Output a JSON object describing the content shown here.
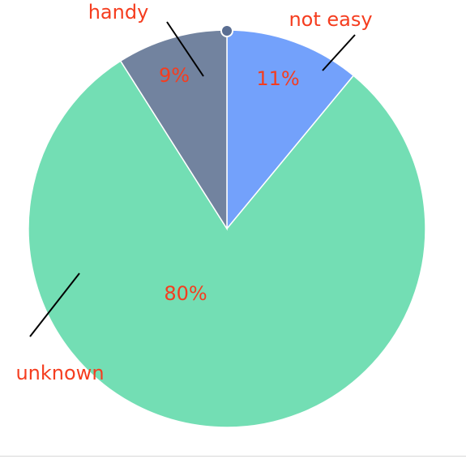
{
  "chart_data": {
    "type": "pie",
    "start_angle_deg": 0,
    "direction": "clockwise",
    "slices": [
      {
        "label": "not easy",
        "value": 11,
        "percent_label": "11%",
        "color": "#73a1fb"
      },
      {
        "label": "unknown",
        "value": 80,
        "percent_label": "80%",
        "color": "#73deb4"
      },
      {
        "label": "handy",
        "value": 9,
        "percent_label": "9%",
        "color": "#72839f"
      }
    ],
    "label_color": "#f53d1f",
    "leader_line_color": "#000000",
    "center_dot_color": "#5a6e92"
  }
}
